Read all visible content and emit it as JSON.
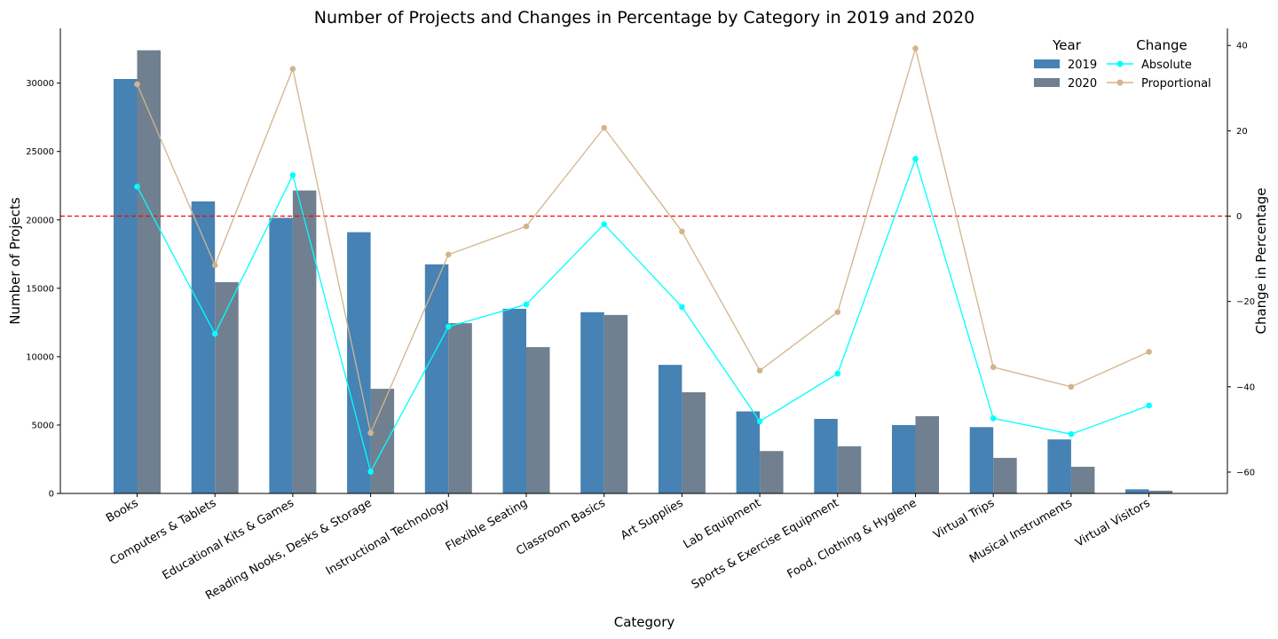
{
  "chart_data": {
    "type": "bar",
    "title": "Number of Projects and Changes in Percentage by Category in 2019 and 2020",
    "xlabel": "Category",
    "ylabel": "Number of Projects",
    "y2label": "Change in Percentage",
    "categories": [
      "Books",
      "Computers & Tablets",
      "Educational Kits & Games",
      "Reading Nooks, Desks & Storage",
      "Instructional Technology",
      "Flexible Seating",
      "Classroom Basics",
      "Art Supplies",
      "Lab Equipment",
      "Sports & Exercise Equipment",
      "Food, Clothing & Hygiene",
      "Virtual Trips",
      "Musical Instruments",
      "Virtual Visitors"
    ],
    "series": [
      {
        "name": "2019",
        "values": [
          30300,
          21350,
          20150,
          19100,
          16750,
          13500,
          13250,
          9400,
          6000,
          5450,
          5000,
          4850,
          3950,
          300
        ],
        "color": "#4682b4"
      },
      {
        "name": "2020",
        "values": [
          32400,
          15450,
          22150,
          7650,
          12450,
          10700,
          13050,
          7400,
          3100,
          3450,
          5650,
          2600,
          1950,
          200
        ],
        "color": "#708090"
      }
    ],
    "line_series": [
      {
        "name": "Absolute",
        "values": [
          6.9,
          -27.6,
          9.6,
          -59.9,
          -25.9,
          -20.7,
          -1.9,
          -21.3,
          -48.1,
          -36.9,
          13.4,
          -47.4,
          -51.1,
          -44.4
        ],
        "color": "#00ffff"
      },
      {
        "name": "Proportional",
        "values": [
          30.9,
          -11.5,
          34.5,
          -50.8,
          -9.0,
          -2.4,
          20.7,
          -3.6,
          -36.2,
          -22.5,
          39.3,
          -35.4,
          -40.0,
          -31.8
        ],
        "color": "#d2b48c"
      }
    ],
    "reference_line": {
      "value": 0,
      "axis": "y2",
      "color": "#ff0000",
      "style": "dashed"
    },
    "ylim": [
      0,
      34000
    ],
    "y_ticks": [
      0,
      5000,
      10000,
      15000,
      20000,
      25000,
      30000
    ],
    "y2lim": [
      -65,
      44
    ],
    "y2_ticks": [
      -60,
      -40,
      -20,
      0,
      20,
      40
    ],
    "grid": false,
    "legends": [
      {
        "title": "Year",
        "entries": [
          "2019",
          "2020"
        ],
        "placement": "top-right"
      },
      {
        "title": "Change",
        "entries": [
          "Absolute",
          "Proportional"
        ],
        "placement": "top-right"
      }
    ]
  }
}
